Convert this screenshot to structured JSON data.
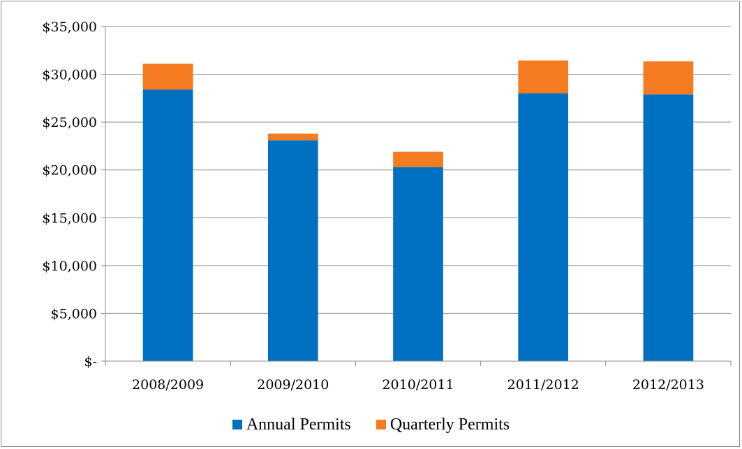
{
  "chart_data": {
    "type": "bar",
    "stacked": true,
    "categories": [
      "2008/2009",
      "2009/2010",
      "2010/2011",
      "2011/2012",
      "2012/2013"
    ],
    "series": [
      {
        "name": "Annual Permits",
        "color": "#0070C0",
        "values": [
          28400,
          23100,
          20300,
          28000,
          27900
        ]
      },
      {
        "name": "Quarterly Permits",
        "color": "#F47B20",
        "values": [
          2700,
          700,
          1600,
          3450,
          3450
        ]
      }
    ],
    "ylim": [
      0,
      35000
    ],
    "yticks": [
      0,
      5000,
      10000,
      15000,
      20000,
      25000,
      30000,
      35000
    ],
    "ytick_labels": [
      "$-",
      "$5,000",
      "$10,000",
      "$15,000",
      "$20,000",
      "$25,000",
      "$30,000",
      "$35,000"
    ],
    "grid": true,
    "legend_position": "bottom",
    "title": "",
    "xlabel": "",
    "ylabel": ""
  }
}
